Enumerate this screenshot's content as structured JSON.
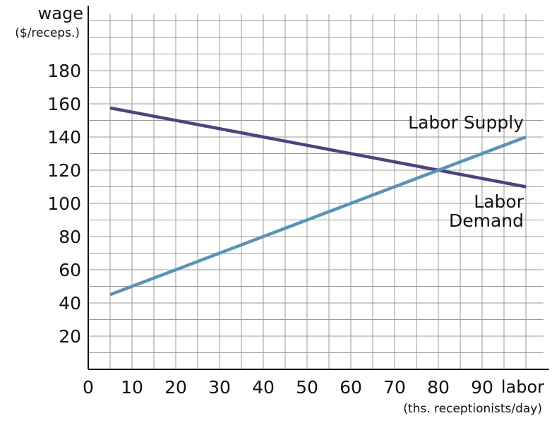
{
  "chart_data": {
    "type": "line",
    "xlabel": "labor",
    "xlabel_sub": "(ths. receptionists/day)",
    "ylabel": "wage",
    "ylabel_sub": "($/receps.)",
    "xlim": [
      0,
      104
    ],
    "ylim": [
      0,
      214
    ],
    "grid": true,
    "x_ticks": [
      {
        "value": 0,
        "label": "0"
      },
      {
        "value": 10,
        "label": "10"
      },
      {
        "value": 20,
        "label": "20"
      },
      {
        "value": 30,
        "label": "30"
      },
      {
        "value": 40,
        "label": "40"
      },
      {
        "value": 50,
        "label": "50"
      },
      {
        "value": 60,
        "label": "60"
      },
      {
        "value": 70,
        "label": "70"
      },
      {
        "value": 80,
        "label": "80"
      },
      {
        "value": 90,
        "label": "90"
      }
    ],
    "y_ticks": [
      {
        "value": 20,
        "label": "20"
      },
      {
        "value": 40,
        "label": "40"
      },
      {
        "value": 60,
        "label": "60"
      },
      {
        "value": 80,
        "label": "80"
      },
      {
        "value": 100,
        "label": "100"
      },
      {
        "value": 120,
        "label": "120"
      },
      {
        "value": 140,
        "label": "140"
      },
      {
        "value": 160,
        "label": "160"
      },
      {
        "value": 180,
        "label": "180"
      }
    ],
    "series": [
      {
        "name": "Labor Demand",
        "name_lines": [
          "Labor",
          "Demand"
        ],
        "color": "#4a4580",
        "x": [
          5,
          100
        ],
        "y": [
          157.5,
          110
        ]
      },
      {
        "name": "Labor Supply",
        "name_lines": [
          "Labor Supply"
        ],
        "color": "#5b93b5",
        "x": [
          5,
          100
        ],
        "y": [
          45,
          140
        ]
      }
    ]
  }
}
